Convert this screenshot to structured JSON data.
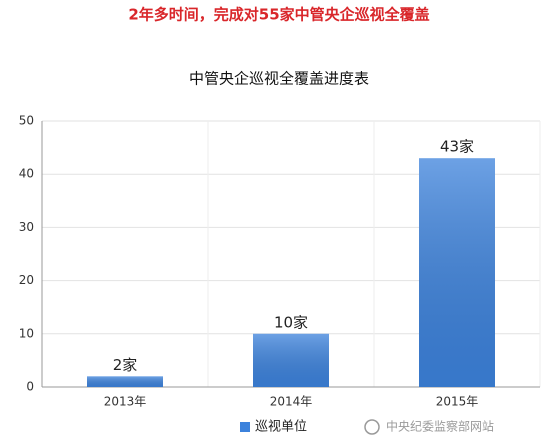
{
  "header": {
    "title": "2年多时间，完成对55家中管央企巡视全覆盖"
  },
  "watermark": "中央纪委监察部网站",
  "chart_data": {
    "type": "bar",
    "title": "中管央企巡视全覆盖进度表",
    "categories": [
      "2013年",
      "2014年",
      "2015年"
    ],
    "series": [
      {
        "name": "巡视单位",
        "color": "#3c82dc",
        "values": [
          2,
          10,
          43
        ],
        "value_labels": [
          "2家",
          "10家",
          "43家"
        ]
      }
    ],
    "ylim": [
      0,
      50
    ],
    "yticks": [
      0,
      10,
      20,
      30,
      40,
      50
    ],
    "grid": true,
    "legend": "bottom"
  }
}
